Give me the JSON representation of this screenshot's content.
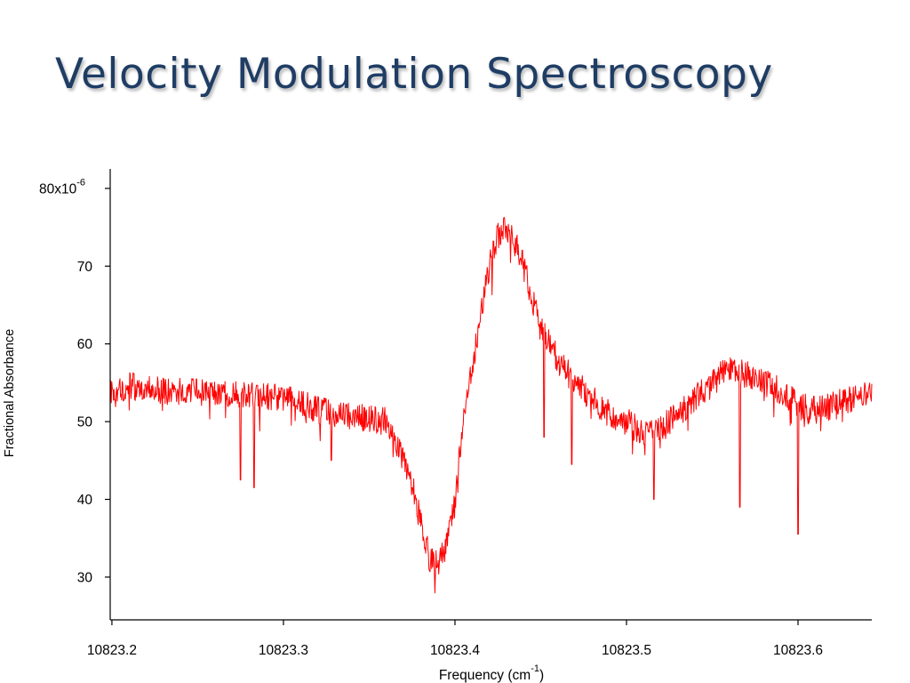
{
  "slide": {
    "title": "Velocity Modulation Spectroscopy"
  },
  "chart_data": {
    "type": "line",
    "title": "",
    "xlabel": "Frequency (cm",
    "xlabel_sup": "-1",
    "xlabel_close": ")",
    "ylabel": "Fractional Absorbance",
    "xlim": [
      10823.199,
      10823.643
    ],
    "ylim": [
      24.5,
      82.5
    ],
    "y_unit_exponent": "-6",
    "x_ticks": [
      {
        "value": 10823.2,
        "label": "10823.2"
      },
      {
        "value": 10823.3,
        "label": "10823.3"
      },
      {
        "value": 10823.4,
        "label": "10823.4"
      },
      {
        "value": 10823.5,
        "label": "10823.5"
      },
      {
        "value": 10823.6,
        "label": "10823.6"
      }
    ],
    "y_ticks": [
      {
        "value": 30,
        "label": "30"
      },
      {
        "value": 40,
        "label": "40"
      },
      {
        "value": 50,
        "label": "50"
      },
      {
        "value": 60,
        "label": "60"
      },
      {
        "value": 70,
        "label": "70"
      },
      {
        "value": 80,
        "label": "80x10"
      }
    ],
    "grid": false,
    "legend": "none",
    "series": [
      {
        "color": "#ff0000",
        "x": [
          10823.199,
          10823.21,
          10823.22,
          10823.23,
          10823.24,
          10823.25,
          10823.26,
          10823.27,
          10823.28,
          10823.29,
          10823.3,
          10823.31,
          10823.32,
          10823.33,
          10823.34,
          10823.35,
          10823.36,
          10823.365,
          10823.37,
          10823.375,
          10823.38,
          10823.385,
          10823.39,
          10823.395,
          10823.4,
          10823.405,
          10823.41,
          10823.415,
          10823.42,
          10823.425,
          10823.43,
          10823.435,
          10823.44,
          10823.445,
          10823.45,
          10823.455,
          10823.46,
          10823.47,
          10823.48,
          10823.49,
          10823.5,
          10823.51,
          10823.52,
          10823.53,
          10823.54,
          10823.55,
          10823.56,
          10823.57,
          10823.58,
          10823.59,
          10823.6,
          10823.61,
          10823.62,
          10823.63,
          10823.643
        ],
        "y": [
          54,
          54.5,
          54.5,
          54,
          53.8,
          53.7,
          53.5,
          53.4,
          53.3,
          53.2,
          53,
          52.5,
          51.5,
          51,
          50.5,
          50.5,
          50,
          48,
          45,
          42,
          37,
          32.5,
          31.5,
          34,
          40,
          50,
          57,
          64,
          70,
          74,
          75,
          73,
          70,
          66,
          62,
          60,
          58,
          55,
          53,
          51,
          50,
          48.5,
          49,
          51,
          53,
          55,
          57,
          56,
          55,
          54,
          52,
          51.5,
          52,
          53,
          53.5
        ]
      }
    ],
    "dip_annotations": [
      {
        "x": 10823.275,
        "y": 42.5
      },
      {
        "x": 10823.283,
        "y": 41.5
      },
      {
        "x": 10823.328,
        "y": 45
      },
      {
        "x": 10823.452,
        "y": 48
      },
      {
        "x": 10823.468,
        "y": 44.5
      },
      {
        "x": 10823.516,
        "y": 40
      },
      {
        "x": 10823.566,
        "y": 39
      },
      {
        "x": 10823.6,
        "y": 35.5
      }
    ],
    "noise_amplitude": 1.8,
    "noise_seed": 17
  }
}
